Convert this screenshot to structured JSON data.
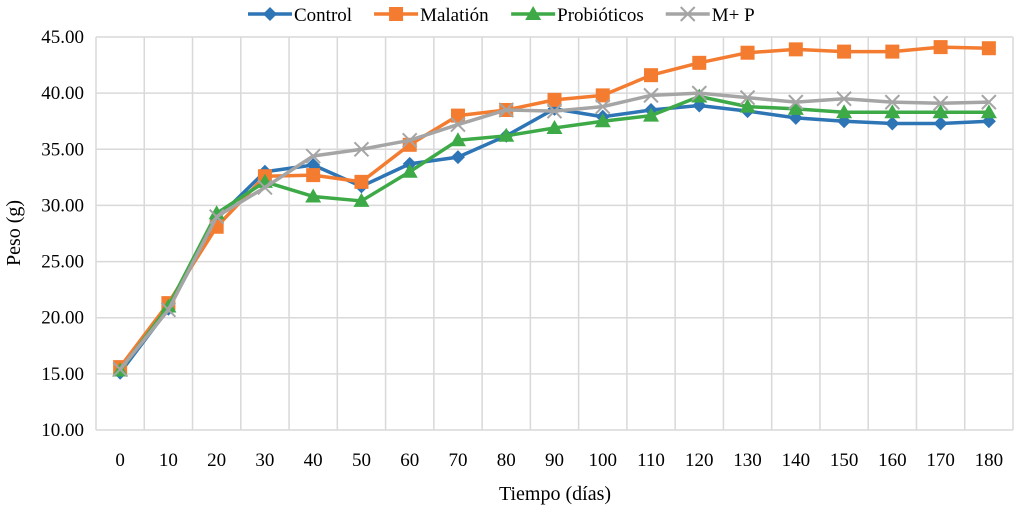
{
  "chart_data": {
    "type": "line",
    "title": "",
    "xlabel": "Tiempo (días)",
    "ylabel": "Peso (g)",
    "x": [
      0,
      10,
      20,
      30,
      40,
      50,
      60,
      70,
      80,
      90,
      100,
      110,
      120,
      130,
      140,
      150,
      160,
      170,
      180
    ],
    "ylim": [
      10,
      45
    ],
    "ytick_step": 5,
    "ytick_format_decimals": 2,
    "grid": true,
    "legend_position": "top",
    "series": [
      {
        "name": "Control",
        "color": "#2E75B6",
        "marker": "diamond",
        "values": [
          15.1,
          20.8,
          28.8,
          33.0,
          33.6,
          31.7,
          33.7,
          34.3,
          36.2,
          38.6,
          37.9,
          38.5,
          38.9,
          38.4,
          37.8,
          37.5,
          37.3,
          37.3,
          37.5
        ]
      },
      {
        "name": "Malatión",
        "color": "#F47C30",
        "marker": "square",
        "values": [
          15.6,
          21.3,
          28.1,
          32.6,
          32.7,
          32.1,
          35.4,
          38.0,
          38.5,
          39.4,
          39.8,
          41.6,
          42.7,
          43.6,
          43.9,
          43.7,
          43.7,
          44.1,
          44.0
        ]
      },
      {
        "name": "Probióticos",
        "color": "#3DAA47",
        "marker": "triangle",
        "values": [
          15.3,
          21.0,
          29.3,
          32.1,
          30.8,
          30.4,
          33.0,
          35.8,
          36.2,
          36.9,
          37.5,
          38.0,
          39.7,
          38.8,
          38.6,
          38.3,
          38.3,
          38.3,
          38.3
        ]
      },
      {
        "name": "M+ P",
        "color": "#A5A5A5",
        "marker": "x",
        "values": [
          15.4,
          20.7,
          29.0,
          31.6,
          34.4,
          35.0,
          35.8,
          37.2,
          38.5,
          38.4,
          38.8,
          39.8,
          40.0,
          39.6,
          39.2,
          39.5,
          39.2,
          39.1,
          39.2
        ]
      }
    ]
  }
}
